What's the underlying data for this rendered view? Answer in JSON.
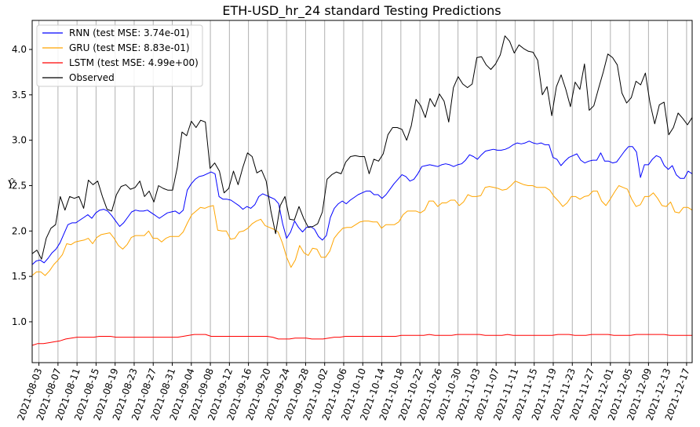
{
  "chart_data": {
    "type": "line",
    "title": "ETH-USD_hr_24 standard Testing Predictions",
    "xlabel": "",
    "ylabel": "Ŷ",
    "ylim": [
      0.55,
      4.32
    ],
    "xlim": [
      "2021-08-01T14:00",
      "2021-12-18T04:00"
    ],
    "yticks": [
      1.0,
      1.5,
      2.0,
      2.5,
      3.0,
      3.5,
      4.0
    ],
    "ytick_labels": [
      "1.0",
      "1.5",
      "2.0",
      "2.5",
      "3.0",
      "3.5",
      "4.0"
    ],
    "xticks": [
      "2021-08-03",
      "2021-08-07",
      "2021-08-11",
      "2021-08-15",
      "2021-08-19",
      "2021-08-23",
      "2021-08-27",
      "2021-08-31",
      "2021-09-04",
      "2021-09-08",
      "2021-09-12",
      "2021-09-16",
      "2021-09-20",
      "2021-09-24",
      "2021-09-28",
      "2021-10-02",
      "2021-10-06",
      "2021-10-10",
      "2021-10-14",
      "2021-10-18",
      "2021-10-22",
      "2021-10-26",
      "2021-10-30",
      "2021-11-03",
      "2021-11-07",
      "2021-11-11",
      "2021-11-15",
      "2021-11-19",
      "2021-11-23",
      "2021-11-27",
      "2021-12-01",
      "2021-12-05",
      "2021-12-09",
      "2021-12-13",
      "2021-12-17"
    ],
    "grid": "vertical",
    "legend_position": "top-left",
    "x": {
      "start": "2021-08-01T14:00",
      "end": "2021-12-18T04:00"
    },
    "series": [
      {
        "name": "RNN (test MSE: 3.74e-01)",
        "color": "#0000ff",
        "values": [
          1.63,
          1.67,
          1.68,
          1.65,
          1.7,
          1.76,
          1.8,
          1.87,
          1.97,
          2.07,
          2.09,
          2.09,
          2.12,
          2.15,
          2.18,
          2.14,
          2.2,
          2.23,
          2.24,
          2.22,
          2.17,
          2.11,
          2.05,
          2.09,
          2.15,
          2.21,
          2.23,
          2.22,
          2.22,
          2.23,
          2.2,
          2.17,
          2.14,
          2.17,
          2.2,
          2.21,
          2.22,
          2.19,
          2.23,
          2.45,
          2.52,
          2.57,
          2.6,
          2.61,
          2.63,
          2.65,
          2.63,
          2.38,
          2.35,
          2.35,
          2.34,
          2.31,
          2.28,
          2.24,
          2.27,
          2.25,
          2.29,
          2.38,
          2.41,
          2.39,
          2.37,
          2.35,
          2.3,
          2.08,
          1.92,
          1.99,
          2.11,
          2.04,
          1.99,
          2.04,
          2.05,
          2.02,
          1.94,
          1.9,
          1.95,
          2.15,
          2.25,
          2.3,
          2.33,
          2.3,
          2.34,
          2.37,
          2.4,
          2.42,
          2.44,
          2.44,
          2.4,
          2.4,
          2.36,
          2.4,
          2.46,
          2.52,
          2.57,
          2.62,
          2.6,
          2.55,
          2.57,
          2.63,
          2.71,
          2.72,
          2.73,
          2.72,
          2.71,
          2.73,
          2.74,
          2.73,
          2.71,
          2.73,
          2.74,
          2.78,
          2.84,
          2.82,
          2.79,
          2.84,
          2.88,
          2.89,
          2.9,
          2.89,
          2.89,
          2.9,
          2.92,
          2.95,
          2.97,
          2.96,
          2.97,
          2.99,
          2.97,
          2.96,
          2.97,
          2.95,
          2.95,
          2.81,
          2.79,
          2.72,
          2.77,
          2.81,
          2.83,
          2.85,
          2.78,
          2.75,
          2.77,
          2.78,
          2.78,
          2.86,
          2.77,
          2.77,
          2.75,
          2.76,
          2.82,
          2.88,
          2.93,
          2.93,
          2.87,
          2.59,
          2.73,
          2.73,
          2.79,
          2.83,
          2.81,
          2.72,
          2.68,
          2.72,
          2.62,
          2.58,
          2.58,
          2.66,
          2.63
        ]
      },
      {
        "name": "GRU (test MSE: 8.83e-01)",
        "color": "#ffa500",
        "values": [
          1.51,
          1.55,
          1.55,
          1.51,
          1.56,
          1.63,
          1.68,
          1.74,
          1.86,
          1.85,
          1.88,
          1.89,
          1.9,
          1.92,
          1.86,
          1.93,
          1.96,
          1.97,
          1.98,
          1.92,
          1.84,
          1.8,
          1.85,
          1.93,
          1.95,
          1.95,
          1.95,
          2.0,
          1.92,
          1.92,
          1.88,
          1.92,
          1.94,
          1.94,
          1.94,
          1.99,
          2.09,
          2.18,
          2.22,
          2.26,
          2.25,
          2.27,
          2.28,
          2.01,
          2.0,
          2.0,
          1.91,
          1.92,
          1.99,
          2.0,
          2.03,
          2.08,
          2.11,
          2.13,
          2.06,
          2.04,
          2.02,
          1.99,
          1.87,
          1.71,
          1.6,
          1.68,
          1.84,
          1.76,
          1.73,
          1.81,
          1.8,
          1.71,
          1.71,
          1.78,
          1.92,
          1.98,
          2.03,
          2.04,
          2.04,
          2.07,
          2.1,
          2.11,
          2.11,
          2.1,
          2.1,
          2.03,
          2.07,
          2.07,
          2.07,
          2.1,
          2.18,
          2.22,
          2.22,
          2.22,
          2.2,
          2.23,
          2.33,
          2.33,
          2.27,
          2.31,
          2.31,
          2.34,
          2.34,
          2.28,
          2.32,
          2.4,
          2.38,
          2.38,
          2.39,
          2.48,
          2.49,
          2.48,
          2.47,
          2.45,
          2.46,
          2.5,
          2.55,
          2.53,
          2.51,
          2.5,
          2.5,
          2.48,
          2.48,
          2.48,
          2.45,
          2.38,
          2.33,
          2.27,
          2.31,
          2.38,
          2.38,
          2.35,
          2.38,
          2.39,
          2.44,
          2.44,
          2.33,
          2.28,
          2.35,
          2.43,
          2.5,
          2.48,
          2.46,
          2.35,
          2.27,
          2.29,
          2.38,
          2.38,
          2.42,
          2.36,
          2.28,
          2.27,
          2.32,
          2.21,
          2.2,
          2.26,
          2.26,
          2.23
        ]
      },
      {
        "name": "LSTM (test MSE: 4.99e+00)",
        "color": "#ff0000",
        "values": [
          0.74,
          0.76,
          0.76,
          0.77,
          0.78,
          0.79,
          0.81,
          0.82,
          0.83,
          0.83,
          0.83,
          0.83,
          0.84,
          0.84,
          0.84,
          0.83,
          0.83,
          0.83,
          0.83,
          0.83,
          0.83,
          0.83,
          0.83,
          0.83,
          0.83,
          0.83,
          0.83,
          0.84,
          0.85,
          0.86,
          0.86,
          0.86,
          0.84,
          0.84,
          0.84,
          0.84,
          0.84,
          0.84,
          0.84,
          0.84,
          0.84,
          0.84,
          0.84,
          0.83,
          0.81,
          0.81,
          0.81,
          0.82,
          0.82,
          0.82,
          0.81,
          0.81,
          0.81,
          0.82,
          0.83,
          0.83,
          0.84,
          0.84,
          0.84,
          0.84,
          0.84,
          0.84,
          0.84,
          0.84,
          0.84,
          0.84,
          0.85,
          0.85,
          0.85,
          0.85,
          0.85,
          0.86,
          0.85,
          0.85,
          0.85,
          0.85,
          0.86,
          0.86,
          0.86,
          0.86,
          0.86,
          0.85,
          0.85,
          0.85,
          0.85,
          0.86,
          0.85,
          0.85,
          0.85,
          0.85,
          0.85,
          0.85,
          0.85,
          0.85,
          0.86,
          0.86,
          0.86,
          0.85,
          0.85,
          0.85,
          0.86,
          0.86,
          0.86,
          0.86,
          0.85,
          0.85,
          0.85,
          0.85,
          0.86,
          0.86,
          0.86,
          0.86,
          0.86,
          0.86,
          0.85,
          0.85,
          0.85,
          0.85,
          0.85
        ]
      },
      {
        "name": "Observed",
        "color": "#000000",
        "values": [
          1.75,
          1.79,
          1.69,
          1.92,
          2.03,
          2.07,
          2.38,
          2.23,
          2.38,
          2.36,
          2.38,
          2.25,
          2.56,
          2.51,
          2.55,
          2.38,
          2.24,
          2.22,
          2.4,
          2.49,
          2.51,
          2.46,
          2.48,
          2.55,
          2.38,
          2.44,
          2.32,
          2.5,
          2.47,
          2.45,
          2.45,
          2.7,
          3.09,
          3.05,
          3.21,
          3.14,
          3.22,
          3.2,
          2.69,
          2.75,
          2.66,
          2.42,
          2.47,
          2.66,
          2.51,
          2.7,
          2.86,
          2.82,
          2.64,
          2.67,
          2.55,
          2.22,
          1.97,
          2.28,
          2.38,
          2.13,
          2.12,
          2.27,
          2.14,
          2.04,
          2.05,
          2.08,
          2.21,
          2.57,
          2.62,
          2.65,
          2.63,
          2.76,
          2.82,
          2.83,
          2.82,
          2.82,
          2.63,
          2.79,
          2.77,
          2.85,
          3.06,
          3.14,
          3.14,
          3.12,
          3.0,
          3.16,
          3.45,
          3.38,
          3.25,
          3.46,
          3.37,
          3.51,
          3.43,
          3.2,
          3.58,
          3.7,
          3.62,
          3.58,
          3.62,
          3.91,
          3.92,
          3.83,
          3.78,
          3.84,
          3.94,
          4.15,
          4.09,
          3.96,
          4.05,
          4.01,
          3.98,
          3.97,
          3.88,
          3.5,
          3.59,
          3.27,
          3.59,
          3.72,
          3.56,
          3.37,
          3.64,
          3.56,
          3.84,
          3.33,
          3.38,
          3.57,
          3.75,
          3.95,
          3.91,
          3.83,
          3.52,
          3.41,
          3.47,
          3.65,
          3.61,
          3.74,
          3.41,
          3.18,
          3.39,
          3.42,
          3.06,
          3.14,
          3.3,
          3.24,
          3.17,
          3.25
        ]
      }
    ]
  }
}
